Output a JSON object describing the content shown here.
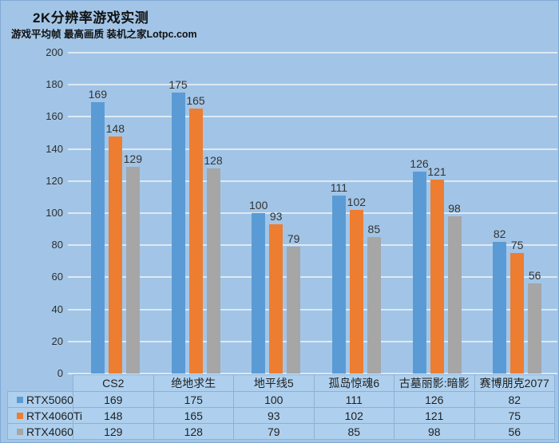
{
  "header": {
    "title": "2K分辨率游戏实测",
    "subtitle": "游戏平均帧 最高画质 装机之家Lotpc.com"
  },
  "colors": {
    "background": "#a2c5e7",
    "page_border": "#7fa9d3",
    "gridline": "#dde9f4",
    "table_border": "#8ab1d8",
    "cell_bg": "#aed0ee",
    "text": "#262626",
    "bar_blue": "#5b9bd5",
    "bar_orange": "#ed7d31",
    "bar_gray": "#a6a6a6"
  },
  "chart_data": {
    "type": "bar",
    "title": "2K分辨率游戏实测",
    "subtitle": "游戏平均帧 最高画质 装机之家Lotpc.com",
    "categories": [
      "CS2",
      "绝地求生",
      "地平线5",
      "孤岛惊魂6",
      "古墓丽影:暗影",
      "赛博朋克2077"
    ],
    "series": [
      {
        "name": "RTX5060",
        "color": "#5b9bd5",
        "values": [
          169,
          175,
          100,
          111,
          126,
          82
        ]
      },
      {
        "name": "RTX4060Ti",
        "color": "#ed7d31",
        "values": [
          148,
          165,
          93,
          102,
          121,
          75
        ]
      },
      {
        "name": "RTX4060",
        "color": "#a6a6a6",
        "values": [
          129,
          128,
          79,
          85,
          98,
          56
        ]
      }
    ],
    "ylabel": "",
    "xlabel": "",
    "ylim": [
      0,
      200
    ],
    "ytick_step": 20,
    "grid": "horizontal",
    "legend_position": "table-left",
    "data_table_shown": true
  }
}
